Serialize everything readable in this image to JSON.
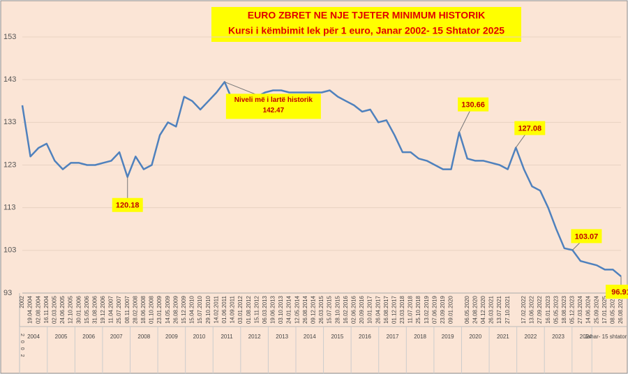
{
  "chart_data": {
    "type": "line",
    "title": "EURO ZBRET NE NJE TJETER MINIMUM HISTORIK",
    "subtitle": "Kursi i këmbimit lek për 1 euro, Janar 2002- 15 Shtator 2025",
    "annotation": "Niveli më i lartë historik",
    "categories": [
      "2002",
      "19.04.2004",
      "02.08.2004",
      "16.11.2004",
      "02.03.2005",
      "24.06.2005",
      "12.10.2005",
      "30.01.2006",
      "15.05.2006",
      "31.08.2006",
      "19.12.2006",
      "11.04.2007",
      "25.07.2007",
      "08.11.2007",
      "28.02.2008",
      "18.06.2008",
      "01.10.2008",
      "23.01.2009",
      "14.05.2009",
      "26.08.2009",
      "15.12.2009",
      "15.04.2010",
      "15.07.2010",
      "29.10.2010",
      "14.02.2011",
      "01.06.2011",
      "14.09.2011",
      "03.01.2012",
      "01.08.2012",
      "15.11.2012",
      "06.03.2013",
      "19.06.2013",
      "03.10.2013",
      "24.01.2014",
      "12.05.2014",
      "26.08.2014",
      "09.12.2014",
      "26.03.2015",
      "15.07.2015",
      "28.10.2015",
      "16.02.2016",
      "02.06.2016",
      "20.09.2016",
      "10.01.2017",
      "26.04.2017",
      "16.08.2017",
      "01.12.2017",
      "23.03.2018",
      "11.07.2018",
      "25.10.2018",
      "13.02.2019",
      "07.06.2019",
      "23.09.2019",
      "09.01.2020",
      null,
      "06.05.2020",
      "24.08.2020",
      "04.12.2020",
      "26.03.2021",
      "13.07.2021",
      "27.10.2021",
      null,
      "17.02.2022",
      "13.06.2022",
      "27.09.2022",
      "16.01.2023",
      "05.05.2023",
      "18.08.2023",
      "05.12.2023",
      "27.03.2024",
      "14.06.2024",
      "25.09.2024",
      "17.01.2025",
      "08.05.2025",
      "26.08.2025"
    ],
    "series": [
      {
        "name": "Kursi",
        "color": "#4f81bd",
        "values": [
          137,
          125,
          127,
          128,
          124,
          122,
          123.5,
          123.5,
          123,
          123,
          123.5,
          124,
          126,
          120.18,
          125,
          122,
          123,
          130,
          133,
          132,
          139,
          138,
          136,
          138,
          140,
          142.47,
          138,
          139,
          138,
          139,
          140,
          140.5,
          140.5,
          140,
          140,
          140,
          140,
          140,
          140.5,
          139,
          138,
          137,
          135.5,
          136,
          133,
          133.5,
          130,
          126,
          126,
          124.5,
          124,
          123,
          122,
          122,
          130.66,
          124.5,
          124,
          124,
          123.5,
          123,
          122,
          127.08,
          122,
          118,
          117,
          113,
          108,
          103.5,
          103.07,
          100.5,
          100,
          99.5,
          98.5,
          98.5,
          96.91
        ],
        "value_labels": [
          null,
          null,
          null,
          null,
          null,
          null,
          null,
          null,
          null,
          null,
          null,
          null,
          null,
          "120.18",
          null,
          null,
          null,
          null,
          null,
          null,
          null,
          null,
          null,
          null,
          null,
          "142.47",
          null,
          null,
          null,
          null,
          null,
          null,
          null,
          null,
          null,
          null,
          null,
          null,
          null,
          null,
          null,
          null,
          null,
          null,
          null,
          null,
          null,
          null,
          null,
          null,
          null,
          null,
          null,
          null,
          "130.66",
          null,
          null,
          null,
          null,
          null,
          null,
          "127.08",
          null,
          null,
          null,
          null,
          null,
          null,
          "103.07",
          null,
          null,
          null,
          null,
          null,
          "96.91"
        ]
      }
    ],
    "ylim": [
      93,
      153
    ],
    "yticks": [
      93,
      103,
      113,
      123,
      133,
      143,
      153
    ],
    "grid": true,
    "first_year": "2002",
    "years": [
      "2004",
      "2005",
      "2006",
      "2007",
      "2008",
      "2009",
      "2010",
      "2011",
      "2012",
      "2013",
      "2014",
      "2015",
      "2016",
      "2017",
      "2018",
      "2019",
      "2020",
      "2021",
      "2022",
      "2023",
      "2024",
      "Janar- 15 shtator"
    ]
  }
}
